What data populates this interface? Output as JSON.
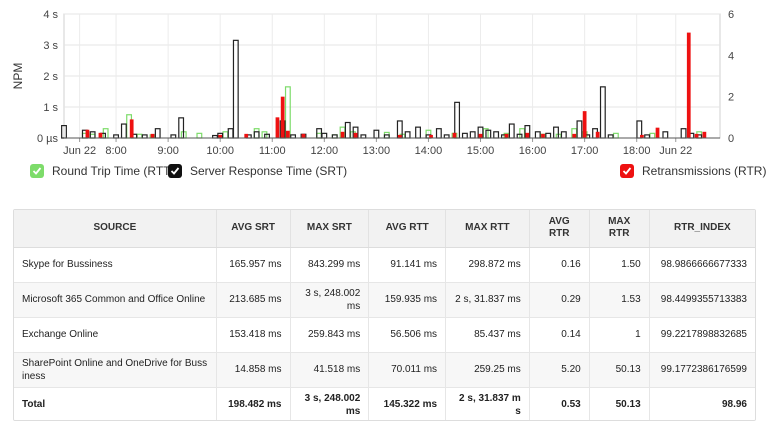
{
  "chart_data": {
    "type": "bar",
    "y_label": "NPM",
    "y_left_ticks": [
      "4 s",
      "3 s",
      "2 s",
      "1 s",
      "0 µs"
    ],
    "y_left_range": [
      0,
      4
    ],
    "y_right_ticks": [
      "6",
      "4",
      "2",
      "0"
    ],
    "y_right_range": [
      0,
      6
    ],
    "x_ticks": [
      "Jun 22",
      "8:00",
      "9:00",
      "10:00",
      "11:00",
      "12:00",
      "13:00",
      "14:00",
      "15:00",
      "16:00",
      "17:00",
      "18:00",
      "Jun 22"
    ],
    "x_range_hours": [
      7.0,
      19.6
    ],
    "x_tick_hours": [
      7.3,
      8,
      9,
      10,
      11,
      12,
      13,
      14,
      15,
      16,
      17,
      18,
      18.75
    ],
    "bar_width_hours": 0.09,
    "series": [
      {
        "name": "Round Trip Time (RTT)",
        "color": "#7ddc6a",
        "axis": "left",
        "points": [
          [
            7.4,
            0.15
          ],
          [
            7.55,
            0.12
          ],
          [
            7.8,
            0.3
          ],
          [
            8.25,
            0.75
          ],
          [
            8.45,
            0.12
          ],
          [
            8.7,
            0.1
          ],
          [
            9.3,
            0.2
          ],
          [
            9.6,
            0.15
          ],
          [
            10.1,
            0.2
          ],
          [
            10.7,
            0.3
          ],
          [
            10.85,
            0.2
          ],
          [
            11.3,
            1.65
          ],
          [
            11.9,
            0.15
          ],
          [
            12.2,
            0.1
          ],
          [
            12.35,
            0.35
          ],
          [
            12.55,
            0.2
          ],
          [
            13.2,
            0.18
          ],
          [
            13.5,
            0.12
          ],
          [
            14.0,
            0.25
          ],
          [
            14.5,
            0.15
          ],
          [
            15.1,
            0.3
          ],
          [
            15.5,
            0.15
          ],
          [
            15.8,
            0.3
          ],
          [
            16.2,
            0.12
          ],
          [
            16.5,
            0.12
          ],
          [
            16.8,
            0.3
          ],
          [
            17.0,
            0.2
          ],
          [
            17.6,
            0.15
          ],
          [
            18.3,
            0.15
          ],
          [
            19.2,
            0.2
          ]
        ]
      },
      {
        "name": "Server Response Time (SRT)",
        "color": "#222222",
        "axis": "left",
        "points": [
          [
            7.0,
            0.4
          ],
          [
            7.4,
            0.25
          ],
          [
            7.55,
            0.2
          ],
          [
            7.75,
            0.15
          ],
          [
            8.0,
            0.1
          ],
          [
            8.15,
            0.45
          ],
          [
            8.35,
            0.12
          ],
          [
            8.55,
            0.1
          ],
          [
            8.8,
            0.3
          ],
          [
            9.1,
            0.1
          ],
          [
            9.25,
            0.65
          ],
          [
            9.9,
            0.08
          ],
          [
            10.0,
            0.15
          ],
          [
            10.2,
            0.3
          ],
          [
            10.3,
            3.15
          ],
          [
            10.55,
            0.1
          ],
          [
            10.7,
            0.2
          ],
          [
            10.9,
            0.12
          ],
          [
            11.2,
            0.55
          ],
          [
            11.4,
            0.1
          ],
          [
            11.6,
            0.12
          ],
          [
            11.9,
            0.3
          ],
          [
            12.0,
            0.15
          ],
          [
            12.2,
            0.1
          ],
          [
            12.45,
            0.5
          ],
          [
            12.6,
            0.35
          ],
          [
            12.75,
            0.1
          ],
          [
            13.0,
            0.25
          ],
          [
            13.2,
            0.1
          ],
          [
            13.45,
            0.55
          ],
          [
            13.6,
            0.2
          ],
          [
            13.8,
            0.35
          ],
          [
            14.0,
            0.1
          ],
          [
            14.2,
            0.3
          ],
          [
            14.35,
            0.1
          ],
          [
            14.55,
            1.15
          ],
          [
            14.7,
            0.15
          ],
          [
            14.85,
            0.2
          ],
          [
            15.0,
            0.35
          ],
          [
            15.15,
            0.25
          ],
          [
            15.3,
            0.2
          ],
          [
            15.45,
            0.1
          ],
          [
            15.6,
            0.45
          ],
          [
            15.75,
            0.12
          ],
          [
            15.9,
            0.4
          ],
          [
            16.1,
            0.2
          ],
          [
            16.3,
            0.15
          ],
          [
            16.45,
            0.35
          ],
          [
            16.6,
            0.2
          ],
          [
            16.9,
            0.55
          ],
          [
            17.05,
            0.1
          ],
          [
            17.2,
            0.3
          ],
          [
            17.35,
            1.65
          ],
          [
            17.5,
            0.1
          ],
          [
            18.05,
            0.55
          ],
          [
            18.2,
            0.1
          ],
          [
            18.55,
            0.2
          ],
          [
            18.9,
            0.3
          ],
          [
            19.05,
            0.15
          ],
          [
            19.2,
            0.1
          ]
        ]
      },
      {
        "name": "Retransmissions (RTR)",
        "color": "#ee1111",
        "axis": "right",
        "points": [
          [
            7.45,
            0.4
          ],
          [
            7.7,
            0.25
          ],
          [
            8.3,
            0.9
          ],
          [
            8.7,
            0.2
          ],
          [
            10.0,
            0.15
          ],
          [
            10.5,
            0.2
          ],
          [
            11.1,
            1.0
          ],
          [
            11.2,
            2.0
          ],
          [
            11.3,
            0.35
          ],
          [
            11.6,
            0.2
          ],
          [
            12.35,
            0.3
          ],
          [
            12.6,
            0.25
          ],
          [
            13.45,
            0.15
          ],
          [
            14.05,
            0.15
          ],
          [
            14.5,
            0.25
          ],
          [
            15.0,
            0.2
          ],
          [
            15.5,
            0.2
          ],
          [
            15.9,
            0.25
          ],
          [
            16.2,
            0.2
          ],
          [
            16.8,
            0.2
          ],
          [
            17.0,
            1.3
          ],
          [
            17.25,
            0.3
          ],
          [
            18.1,
            0.15
          ],
          [
            18.4,
            0.5
          ],
          [
            19.0,
            5.1
          ],
          [
            19.15,
            0.2
          ],
          [
            19.3,
            0.3
          ]
        ]
      }
    ]
  },
  "table": {
    "headers": [
      "SOURCE",
      "AVG SRT",
      "MAX SRT",
      "AVG RTT",
      "MAX RTT",
      "AVG RTR",
      "MAX RTR",
      "RTR_INDEX"
    ],
    "rows": [
      [
        "Skype for Bussiness",
        "165.957 ms",
        "843.299 ms",
        "91.141 ms",
        "298.872 ms",
        "0.16",
        "1.50",
        "98.9866666677333"
      ],
      [
        "Microsoft 365 Common and Office Online",
        "213.685 ms",
        "3 s, 248.002 ms",
        "159.935 ms",
        "2 s, 31.837 ms",
        "0.29",
        "1.53",
        "98.4499355713383"
      ],
      [
        "Exchange Online",
        "153.418 ms",
        "259.843 ms",
        "56.506 ms",
        "85.437 ms",
        "0.14",
        "1",
        "99.2217898832685"
      ],
      [
        "SharePoint Online and OneDrive for Bussiness",
        "14.858 ms",
        "41.518 ms",
        "70.011 ms",
        "259.25 ms",
        "5.20",
        "50.13",
        "99.1772386176599"
      ]
    ],
    "total": [
      "Total",
      "198.482 ms",
      "3 s, 248.002 ms",
      "145.322 ms",
      "2 s, 31.837 ms",
      "0.53",
      "50.13",
      "98.96"
    ]
  }
}
